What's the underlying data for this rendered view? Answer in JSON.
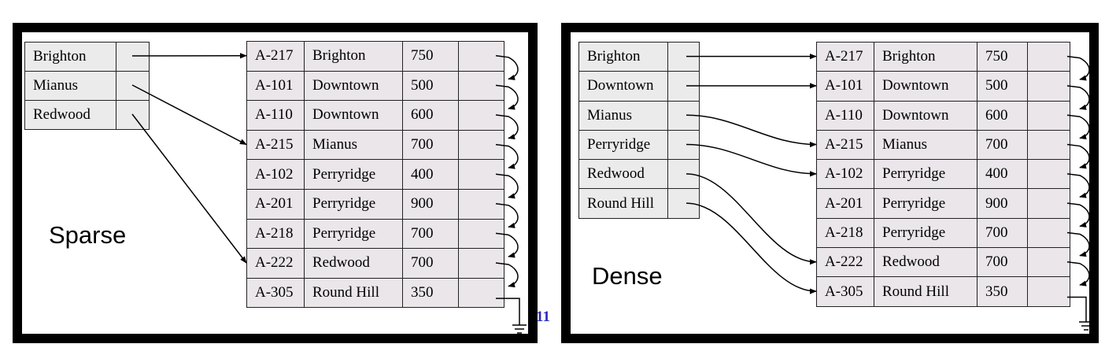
{
  "slide_number": "11",
  "sparse": {
    "caption": "Sparse",
    "index": [
      "Brighton",
      "Mianus",
      "Redwood"
    ],
    "index_targets": [
      0,
      3,
      7
    ]
  },
  "dense": {
    "caption": "Dense",
    "index": [
      "Brighton",
      "Downtown",
      "Mianus",
      "Perryridge",
      "Redwood",
      "Round Hill"
    ],
    "index_targets": [
      0,
      1,
      3,
      4,
      7,
      8
    ]
  },
  "records": [
    [
      "A-217",
      "Brighton",
      "750"
    ],
    [
      "A-101",
      "Downtown",
      "500"
    ],
    [
      "A-110",
      "Downtown",
      "600"
    ],
    [
      "A-215",
      "Mianus",
      "700"
    ],
    [
      "A-102",
      "Perryridge",
      "400"
    ],
    [
      "A-201",
      "Perryridge",
      "900"
    ],
    [
      "A-218",
      "Perryridge",
      "700"
    ],
    [
      "A-222",
      "Redwood",
      "700"
    ],
    [
      "A-305",
      "Round Hill",
      "350"
    ]
  ]
}
